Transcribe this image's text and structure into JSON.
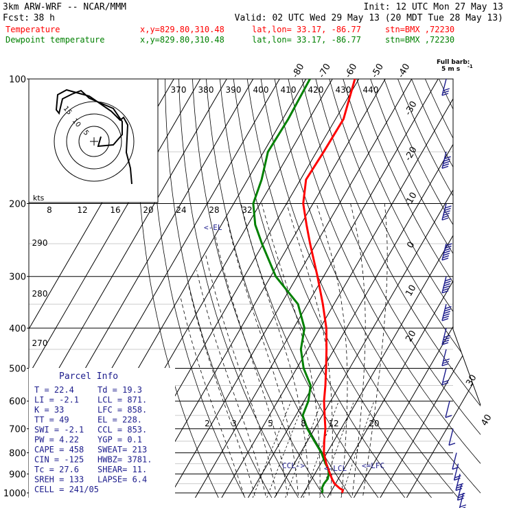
{
  "header": {
    "model": "3km ARW-WRF -- NCAR/MMM",
    "init": "Init: 12 UTC Mon 27 May 13",
    "fcst_label": "Fcst:",
    "fcst_value": "38 h",
    "valid": "Valid: 02 UTC Wed 29 May 13 (20 MDT Tue 28 May 13)",
    "temp_label": "Temperature",
    "dew_label": "Dewpoint temperature",
    "xy": "x,y=829.80,310.48",
    "latlon": "lat,lon= 33.17, -86.77",
    "stn": "stn=BMX ,72230",
    "full_barb_line1": "Full barb:",
    "full_barb_line2": "5 m s",
    "full_barb_sup": "-1"
  },
  "colors": {
    "temperature": "#ff0000",
    "dewpoint": "#008000",
    "overlay_text": "#1c1c8c",
    "grid": "#000000",
    "pressure_lines": "#000000"
  },
  "chart_data": {
    "type": "skew-t",
    "pressure_levels": [
      100,
      200,
      300,
      400,
      500,
      600,
      700,
      800,
      900,
      1000
    ],
    "pressure_tick_labels": [
      "100",
      "200",
      "300",
      "400",
      "500",
      "600",
      "700",
      "800",
      "900",
      "1000"
    ],
    "isotherm_labels": [
      "-80",
      "-70",
      "-60",
      "-50",
      "-40",
      "-30",
      "-20",
      "-10",
      "0",
      "10",
      "20",
      "30",
      "40"
    ],
    "theta_labels": [
      "370",
      "380",
      "390",
      "400",
      "410",
      "420",
      "430",
      "440"
    ],
    "theta_left_labels": [
      "290",
      "280",
      "270"
    ],
    "hodograph_kts_label": "kts",
    "hodograph_axis_labels": [
      "8",
      "12",
      "16",
      "20",
      "24",
      "28",
      "32"
    ],
    "hodograph_ring_labels": [
      "15",
      "10",
      "5"
    ],
    "mixing_ratio_labels": [
      "2",
      "3",
      "5",
      "8",
      "12",
      "20"
    ],
    "temperature_profile": [
      {
        "p": 1000,
        "t": 24.5
      },
      {
        "p": 985,
        "t": 24.2
      },
      {
        "p": 975,
        "t": 22.6
      },
      {
        "p": 950,
        "t": 19.6
      },
      {
        "p": 925,
        "t": 17.6
      },
      {
        "p": 900,
        "t": 15.8
      },
      {
        "p": 875,
        "t": 14.0
      },
      {
        "p": 850,
        "t": 12.1
      },
      {
        "p": 800,
        "t": 8.8
      },
      {
        "p": 750,
        "t": 6.4
      },
      {
        "p": 700,
        "t": 4.1
      },
      {
        "p": 650,
        "t": 0.9
      },
      {
        "p": 600,
        "t": -2.5
      },
      {
        "p": 550,
        "t": -5.4
      },
      {
        "p": 500,
        "t": -8.9
      },
      {
        "p": 450,
        "t": -12.9
      },
      {
        "p": 400,
        "t": -17.6
      },
      {
        "p": 350,
        "t": -24.2
      },
      {
        "p": 300,
        "t": -32.3
      },
      {
        "p": 250,
        "t": -42.3
      },
      {
        "p": 225,
        "t": -47.8
      },
      {
        "p": 200,
        "t": -53.7
      },
      {
        "p": 175,
        "t": -57.9
      },
      {
        "p": 150,
        "t": -57.3
      },
      {
        "p": 125,
        "t": -57.0
      },
      {
        "p": 100,
        "t": -61.5
      }
    ],
    "dewpoint_profile": [
      {
        "p": 1000,
        "td": 17.0
      },
      {
        "p": 985,
        "td": 16.5
      },
      {
        "p": 975,
        "td": 15.8
      },
      {
        "p": 950,
        "td": 15.6
      },
      {
        "p": 925,
        "td": 16.0
      },
      {
        "p": 900,
        "td": 15.3
      },
      {
        "p": 875,
        "td": 14.0
      },
      {
        "p": 850,
        "td": 11.8
      },
      {
        "p": 800,
        "td": 7.9
      },
      {
        "p": 750,
        "td": 2.7
      },
      {
        "p": 700,
        "td": -2.7
      },
      {
        "p": 650,
        "td": -7.4
      },
      {
        "p": 600,
        "td": -8.4
      },
      {
        "p": 550,
        "td": -11.0
      },
      {
        "p": 500,
        "td": -17.4
      },
      {
        "p": 450,
        "td": -22.6
      },
      {
        "p": 400,
        "td": -25.9
      },
      {
        "p": 350,
        "td": -33.6
      },
      {
        "p": 300,
        "td": -48.1
      },
      {
        "p": 250,
        "td": -60.5
      },
      {
        "p": 225,
        "td": -67.2
      },
      {
        "p": 200,
        "td": -72.6
      },
      {
        "p": 175,
        "td": -74.7
      },
      {
        "p": 150,
        "td": -78.4
      },
      {
        "p": 125,
        "td": -77.9
      },
      {
        "p": 100,
        "td": -78.5
      }
    ],
    "annotations": {
      "el": "<-EL",
      "ccl": "CCL->",
      "lcl": "<-LCL",
      "lfc": "<=LFC"
    }
  },
  "parcel_info": {
    "title": "Parcel Info",
    "rows": [
      {
        "left": "T  =    22.4",
        "right": "Td =   19.3"
      },
      {
        "left": "LI =    -2.1",
        "right": "LCL =   871."
      },
      {
        "left": "K  =      33",
        "right": "LFC =   858."
      },
      {
        "left": "TT =      49",
        "right": "EL  =   228."
      },
      {
        "left": "SWI =   -2.1",
        "right": "CCL =   853."
      },
      {
        "left": "PW =    4.22",
        "right": "YGP =    0.1"
      },
      {
        "left": "CAPE =   458",
        "right": "SWEAT=   213"
      },
      {
        "left": "CIN =   -125",
        "right": "HWBZ= 3781."
      },
      {
        "left": "Tc =    27.6",
        "right": "SHEAR=   11."
      },
      {
        "left": "SREH =   133",
        "right": "LAPSE=   6.4"
      },
      {
        "left": "CELL = 241/05",
        "right": ""
      }
    ]
  },
  "wind_profile": {
    "description_levels_hpa": [
      100,
      150,
      200,
      250,
      300,
      350,
      400,
      450,
      500,
      600,
      700,
      800,
      850,
      900,
      950,
      1000
    ],
    "speeds_ms": [
      15,
      25,
      30,
      35,
      30,
      28,
      22,
      15,
      10,
      7,
      5,
      5,
      10,
      15,
      15,
      10
    ]
  }
}
